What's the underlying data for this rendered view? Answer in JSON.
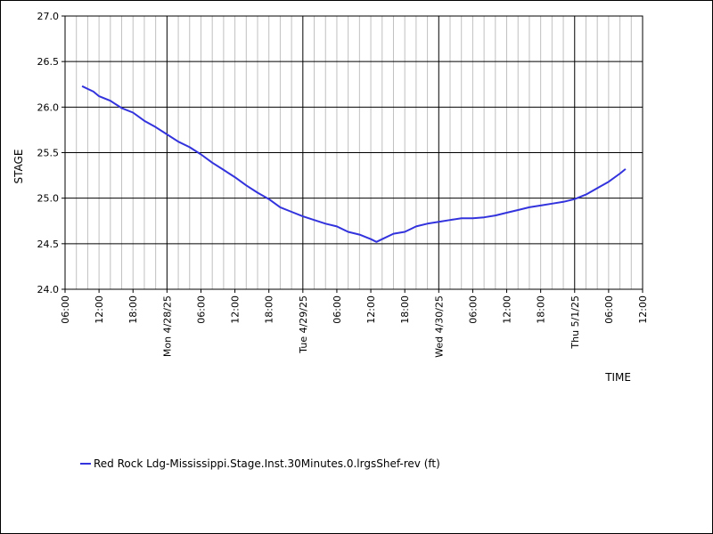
{
  "chart_data": {
    "type": "line",
    "ylabel": "STAGE",
    "xlabel": "TIME",
    "ylim": [
      24.0,
      27.0
    ],
    "yticks": [
      "24.0",
      "24.5",
      "25.0",
      "25.5",
      "26.0",
      "26.5",
      "27.0"
    ],
    "ytick_values": [
      24.0,
      24.5,
      25.0,
      25.5,
      26.0,
      26.5,
      27.0
    ],
    "xlim_hours": [
      0,
      102
    ],
    "xtick_hours": [
      0,
      6,
      12,
      18,
      24,
      30,
      36,
      42,
      48,
      54,
      60,
      66,
      72,
      78,
      84,
      90,
      96,
      102
    ],
    "xticks": [
      "06:00",
      "12:00",
      "18:00",
      "Mon 4/28/25",
      "06:00",
      "12:00",
      "18:00",
      "Tue 4/29/25",
      "06:00",
      "12:00",
      "18:00",
      "Wed 4/30/25",
      "06:00",
      "12:00",
      "18:00",
      "Thu 5/1/25",
      "06:00",
      "12:00"
    ],
    "major_tick_hours": [
      18,
      42,
      66,
      90
    ],
    "grid": true,
    "legend_position": "bottom-left",
    "series": [
      {
        "name": "Red Rock Ldg-Mississippi.Stage.Inst.30Minutes.0.lrgsShef-rev (ft)",
        "color": "#3333dd",
        "x_hours": [
          3,
          4,
          5,
          6,
          8,
          10,
          12,
          14,
          16,
          18,
          20,
          22,
          24,
          26,
          28,
          30,
          32,
          34,
          36,
          38,
          40,
          42,
          44,
          46,
          48,
          50,
          52,
          54,
          55,
          56,
          58,
          60,
          61,
          62,
          64,
          66,
          68,
          70,
          72,
          74,
          76,
          78,
          80,
          82,
          84,
          86,
          88,
          90,
          92,
          94,
          96,
          98,
          99
        ],
        "y": [
          26.23,
          26.2,
          26.17,
          26.12,
          26.07,
          25.99,
          25.94,
          25.85,
          25.78,
          25.7,
          25.62,
          25.56,
          25.48,
          25.39,
          25.31,
          25.23,
          25.14,
          25.06,
          24.99,
          24.9,
          24.85,
          24.8,
          24.76,
          24.72,
          24.69,
          24.63,
          24.6,
          24.55,
          24.52,
          24.55,
          24.61,
          24.63,
          24.66,
          24.69,
          24.72,
          24.74,
          24.76,
          24.78,
          24.78,
          24.79,
          24.81,
          24.84,
          24.87,
          24.9,
          24.92,
          24.94,
          24.96,
          24.99,
          25.04,
          25.11,
          25.18,
          25.27,
          25.32
        ]
      }
    ]
  }
}
